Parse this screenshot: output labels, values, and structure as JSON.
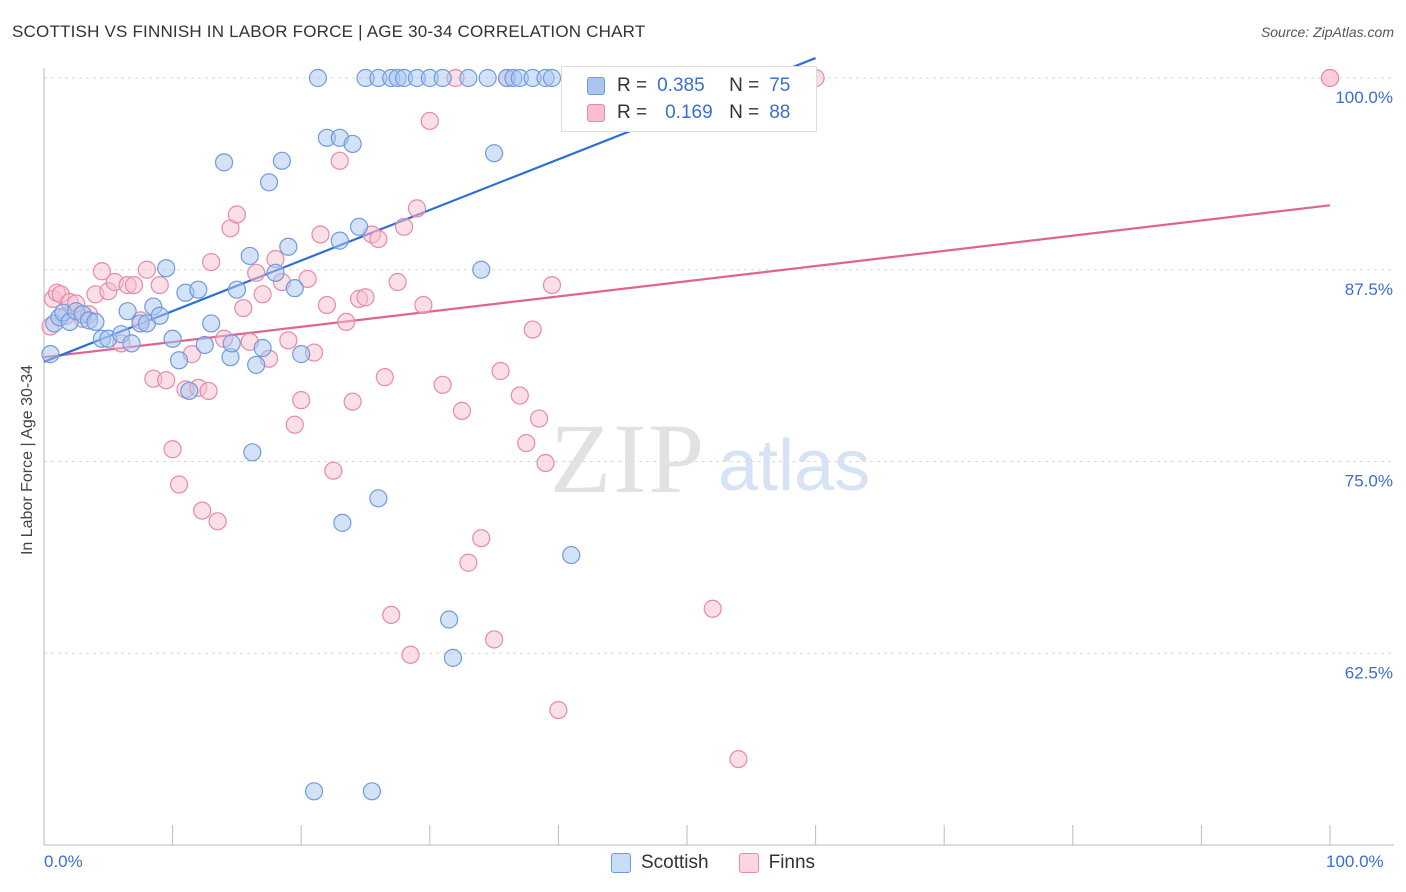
{
  "title": "SCOTTISH VS FINNISH IN LABOR FORCE | AGE 30-34 CORRELATION CHART",
  "source": "Source: ZipAtlas.com",
  "watermark": {
    "zip": "ZIP",
    "atlas": "atlas"
  },
  "colors": {
    "scottish": "#6d9be0",
    "scottish_fill": "#aac6ef",
    "finns": "#e88aa8",
    "finns_fill": "#f7bfd0",
    "scottish_line": "#2e6fd6",
    "finns_line": "#e06490",
    "axis_label": "#3a6fd0",
    "grid": "#d8d8d8"
  },
  "legend_top": {
    "rows": [
      {
        "r_label": "R =",
        "r_value": "0.385",
        "n_label": "N =",
        "n_value": "75"
      },
      {
        "r_label": "R =",
        "r_value": "0.169",
        "n_label": "N =",
        "n_value": "88"
      }
    ]
  },
  "legend_bottom": {
    "items": [
      "Scottish",
      "Finns"
    ]
  },
  "x_axis": {
    "min_label": "0.0%",
    "max_label": "100.0%"
  },
  "chart_data": {
    "type": "scatter",
    "title": "SCOTTISH VS FINNISH IN LABOR FORCE | AGE 30-34 CORRELATION CHART",
    "xlabel": "",
    "ylabel": "In Labor Force | Age 30-34",
    "xlim": [
      0,
      100
    ],
    "ylim": [
      50,
      100
    ],
    "y_ticks": [
      62.5,
      75.0,
      87.5,
      100.0
    ],
    "y_tick_labels": [
      "62.5%",
      "75.0%",
      "87.5%",
      "100.0%"
    ],
    "grid": true,
    "legend_position": "top-center",
    "series": [
      {
        "name": "Scottish",
        "R": 0.385,
        "N": 75,
        "trend": {
          "x": [
            0,
            60
          ],
          "y": [
            81.5,
            101.3
          ]
        },
        "points": [
          [
            0.5,
            82
          ],
          [
            0.8,
            84
          ],
          [
            1.2,
            84.4
          ],
          [
            1.5,
            84.7
          ],
          [
            2,
            84.1
          ],
          [
            2.5,
            84.8
          ],
          [
            3,
            84.6
          ],
          [
            3.5,
            84.2
          ],
          [
            4,
            84.1
          ],
          [
            4.5,
            83
          ],
          [
            5,
            83
          ],
          [
            6,
            83.3
          ],
          [
            6.5,
            84.8
          ],
          [
            6.8,
            82.7
          ],
          [
            7.5,
            84
          ],
          [
            8,
            84
          ],
          [
            8.5,
            85.1
          ],
          [
            9,
            84.5
          ],
          [
            9.5,
            87.6
          ],
          [
            10,
            83
          ],
          [
            10.5,
            81.6
          ],
          [
            11,
            86
          ],
          [
            11.3,
            79.6
          ],
          [
            12,
            86.2
          ],
          [
            12.5,
            82.6
          ],
          [
            13,
            84
          ],
          [
            14,
            94.5
          ],
          [
            14.5,
            81.8
          ],
          [
            14.6,
            82.7
          ],
          [
            15,
            86.2
          ],
          [
            16,
            88.4
          ],
          [
            16.2,
            75.6
          ],
          [
            16.5,
            81.3
          ],
          [
            17,
            82.4
          ],
          [
            17.5,
            93.2
          ],
          [
            18,
            87.3
          ],
          [
            18.5,
            94.6
          ],
          [
            19,
            89
          ],
          [
            19.5,
            86.3
          ],
          [
            20,
            82
          ],
          [
            21,
            53.5
          ],
          [
            21.3,
            100
          ],
          [
            22,
            96.1
          ],
          [
            23,
            96.1
          ],
          [
            23,
            89.4
          ],
          [
            23.2,
            71
          ],
          [
            24,
            95.7
          ],
          [
            24.5,
            90.3
          ],
          [
            25,
            100
          ],
          [
            25.5,
            53.5
          ],
          [
            26,
            72.6
          ],
          [
            26,
            100
          ],
          [
            27,
            100
          ],
          [
            27.5,
            100
          ],
          [
            28,
            100
          ],
          [
            29,
            100
          ],
          [
            30,
            100
          ],
          [
            31,
            100
          ],
          [
            31.5,
            64.7
          ],
          [
            31.8,
            62.2
          ],
          [
            33,
            100
          ],
          [
            34,
            87.5
          ],
          [
            34.5,
            100
          ],
          [
            35,
            95.1
          ],
          [
            36,
            100
          ],
          [
            36.5,
            100
          ],
          [
            37,
            100
          ],
          [
            38,
            100
          ],
          [
            39,
            100
          ],
          [
            39.5,
            100
          ],
          [
            41,
            68.9
          ],
          [
            42,
            100
          ],
          [
            44,
            100
          ],
          [
            56,
            100
          ],
          [
            59,
            100
          ]
        ]
      },
      {
        "name": "Finns",
        "R": 0.169,
        "N": 88,
        "trend": {
          "x": [
            0,
            100
          ],
          "y": [
            81.8,
            91.7
          ]
        },
        "points": [
          [
            0.5,
            83.8
          ],
          [
            0.7,
            85.6
          ],
          [
            1,
            86
          ],
          [
            1.3,
            85.9
          ],
          [
            1.7,
            84.5
          ],
          [
            2,
            85.4
          ],
          [
            2.5,
            85.3
          ],
          [
            3,
            84.3
          ],
          [
            3.5,
            84.6
          ],
          [
            4,
            85.9
          ],
          [
            4.5,
            87.4
          ],
          [
            5,
            86.1
          ],
          [
            5.5,
            86.7
          ],
          [
            6,
            82.7
          ],
          [
            6.5,
            86.5
          ],
          [
            7,
            86.5
          ],
          [
            7.5,
            84.2
          ],
          [
            8,
            87.5
          ],
          [
            8.5,
            80.4
          ],
          [
            9,
            86.5
          ],
          [
            9.5,
            80.3
          ],
          [
            10,
            75.8
          ],
          [
            10.5,
            73.5
          ],
          [
            11,
            79.7
          ],
          [
            11.5,
            82
          ],
          [
            12,
            79.8
          ],
          [
            12.3,
            71.8
          ],
          [
            12.8,
            79.6
          ],
          [
            13,
            88
          ],
          [
            13.5,
            71.1
          ],
          [
            14,
            83
          ],
          [
            14.5,
            90.2
          ],
          [
            15,
            91.1
          ],
          [
            15.5,
            85
          ],
          [
            16,
            82.8
          ],
          [
            16.5,
            87.3
          ],
          [
            17,
            85.9
          ],
          [
            17.5,
            81.7
          ],
          [
            18,
            88.2
          ],
          [
            18.5,
            86.7
          ],
          [
            19,
            82.9
          ],
          [
            19.5,
            77.4
          ],
          [
            20,
            79
          ],
          [
            20.5,
            86.9
          ],
          [
            21,
            82.1
          ],
          [
            21.5,
            89.8
          ],
          [
            22,
            85.2
          ],
          [
            22.5,
            74.4
          ],
          [
            23,
            94.6
          ],
          [
            23.5,
            84.1
          ],
          [
            24,
            78.9
          ],
          [
            24.5,
            85.6
          ],
          [
            25,
            85.7
          ],
          [
            25.5,
            89.8
          ],
          [
            26,
            89.5
          ],
          [
            26.5,
            80.5
          ],
          [
            27,
            65
          ],
          [
            27.5,
            86.7
          ],
          [
            28,
            90.3
          ],
          [
            28.5,
            62.4
          ],
          [
            29,
            91.5
          ],
          [
            29.5,
            85.2
          ],
          [
            30,
            97.2
          ],
          [
            31,
            80
          ],
          [
            32,
            100
          ],
          [
            32.5,
            78.3
          ],
          [
            33,
            68.4
          ],
          [
            34,
            70
          ],
          [
            35,
            63.4
          ],
          [
            35.5,
            80.9
          ],
          [
            36,
            100
          ],
          [
            37,
            79.3
          ],
          [
            37.5,
            76.2
          ],
          [
            38,
            83.6
          ],
          [
            38.5,
            77.8
          ],
          [
            39,
            74.9
          ],
          [
            39.5,
            86.5
          ],
          [
            40,
            58.8
          ],
          [
            41,
            100
          ],
          [
            43,
            100
          ],
          [
            45,
            100
          ],
          [
            52,
            65.4
          ],
          [
            54,
            55.6
          ],
          [
            57,
            100
          ],
          [
            59,
            100
          ],
          [
            60,
            100
          ],
          [
            100,
            100
          ],
          [
            100,
            100
          ]
        ]
      }
    ]
  }
}
